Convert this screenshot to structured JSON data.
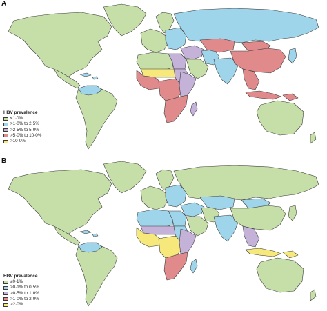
{
  "colors": {
    "green": "#c6dfa8",
    "blue": "#9fd5ea",
    "purple": "#c4b2d9",
    "red": "#e08a8c",
    "yellow": "#f6e87a",
    "ocean": "#ffffff"
  },
  "panel_a": {
    "letter": "A",
    "legend_title": "HBV prevalence",
    "legend": [
      {
        "label": "≤1·0%",
        "color": "green"
      },
      {
        "label": ">1·0% to 2·5%",
        "color": "blue"
      },
      {
        "label": ">2·5% to 5·0%",
        "color": "purple"
      },
      {
        "label": ">5·0% to 10·0%",
        "color": "red"
      },
      {
        "label": ">10·0%",
        "color": "yellow"
      }
    ],
    "regions": {
      "north-america": "green",
      "greenland": "green",
      "central-america": "green",
      "south-america": "green",
      "venezuela": "blue",
      "caribbean": "blue",
      "western-europe": "green",
      "eastern-europe": "blue",
      "scandinavia": "green",
      "russia": "blue",
      "north-africa": "green",
      "libya-egypt": "purple",
      "west-africa": "red",
      "sahel": "yellow",
      "sudan": "purple",
      "central-africa": "red",
      "east-africa": "purple",
      "southern-africa": "red",
      "madagascar": "purple",
      "middle-east": "purple",
      "arabia": "green",
      "iran": "blue",
      "central-asia": "red",
      "south-asia": "blue",
      "china": "red",
      "mongolia": "red",
      "southeast-asia": "red",
      "indonesia": "red",
      "japan": "blue",
      "australia": "green",
      "new-zealand": "green",
      "png": "red"
    }
  },
  "panel_b": {
    "letter": "B",
    "legend_title": "HBV prevalence",
    "legend": [
      {
        "label": "≤0·1%",
        "color": "green"
      },
      {
        "label": ">0·1% to 0·5%",
        "color": "blue"
      },
      {
        "label": ">0·5% to 1·0%",
        "color": "purple"
      },
      {
        "label": ">1·0% to 2·0%",
        "color": "red"
      },
      {
        "label": ">2·0%",
        "color": "yellow"
      }
    ],
    "regions": {
      "north-america": "green",
      "greenland": "green",
      "central-america": "green",
      "south-america": "green",
      "venezuela": "blue",
      "caribbean": "blue",
      "western-europe": "green",
      "eastern-europe": "blue",
      "scandinavia": "green",
      "russia": "green",
      "north-africa": "blue",
      "libya-egypt": "blue",
      "west-africa": "yellow",
      "sahel": "purple",
      "sudan": "blue",
      "central-africa": "yellow",
      "east-africa": "purple",
      "southern-africa": "red",
      "madagascar": "blue",
      "middle-east": "blue",
      "arabia": "green",
      "iran": "green",
      "central-asia": "blue",
      "south-asia": "blue",
      "china": "green",
      "mongolia": "blue",
      "southeast-asia": "purple",
      "indonesia": "yellow",
      "japan": "green",
      "australia": "green",
      "new-zealand": "green",
      "png": "yellow"
    }
  }
}
